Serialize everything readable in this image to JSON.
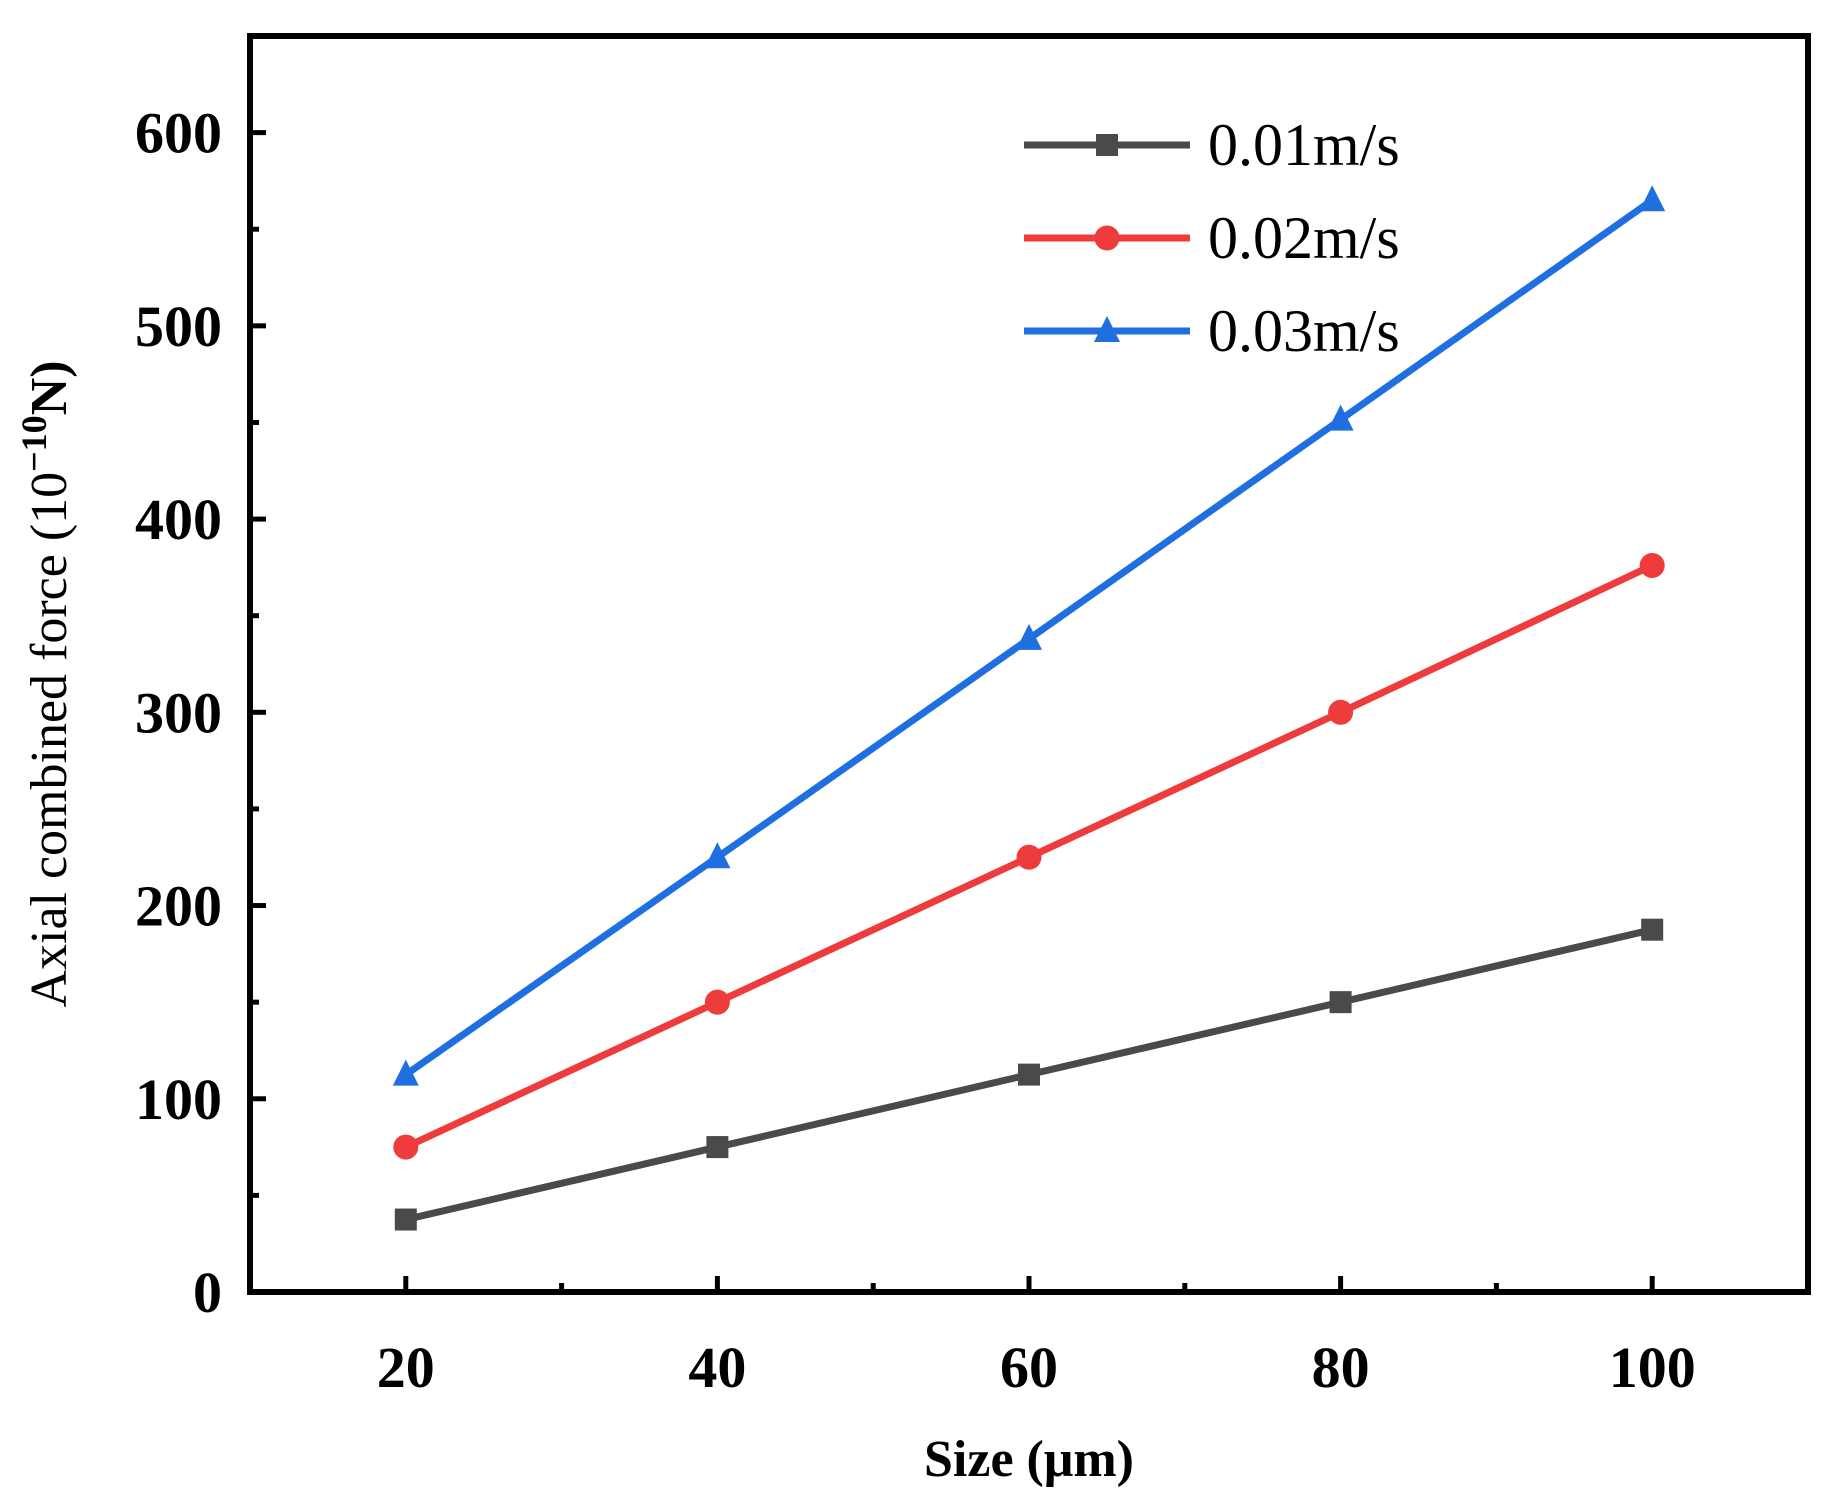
{
  "chart_data": {
    "type": "line",
    "title": "",
    "xlabel": "Size (μm)",
    "ylabel": {
      "prefix": "Axial combined force  (10",
      "superscript": "−10",
      "suffix": "N)"
    },
    "x": [
      20,
      40,
      60,
      80,
      100
    ],
    "xlim": [
      10,
      110
    ],
    "ylim": [
      0,
      650
    ],
    "xticks": [
      20,
      40,
      60,
      80,
      100
    ],
    "xticks_minor": [
      30,
      50,
      70,
      90
    ],
    "yticks": [
      0,
      100,
      200,
      300,
      400,
      500,
      600
    ],
    "yticks_minor": [
      50,
      150,
      250,
      350,
      450,
      550
    ],
    "xtick_labels": [
      "20",
      "40",
      "60",
      "80",
      "100"
    ],
    "ytick_labels": [
      "0",
      "100",
      "200",
      "300",
      "400",
      "500",
      "600"
    ],
    "grid": false,
    "legend_position": "top-right",
    "series": [
      {
        "name": "0.01m/s",
        "values": [
          37.5,
          75,
          112.5,
          150,
          187.5
        ],
        "color": "#4a4a4a",
        "marker": "square"
      },
      {
        "name": "0.02m/s",
        "values": [
          75,
          150,
          225,
          300,
          376
        ],
        "color": "#ee3b3b",
        "marker": "circle"
      },
      {
        "name": "0.03m/s",
        "values": [
          112.5,
          225,
          338,
          451.5,
          565
        ],
        "color": "#1f6fe0",
        "marker": "triangle"
      }
    ]
  }
}
